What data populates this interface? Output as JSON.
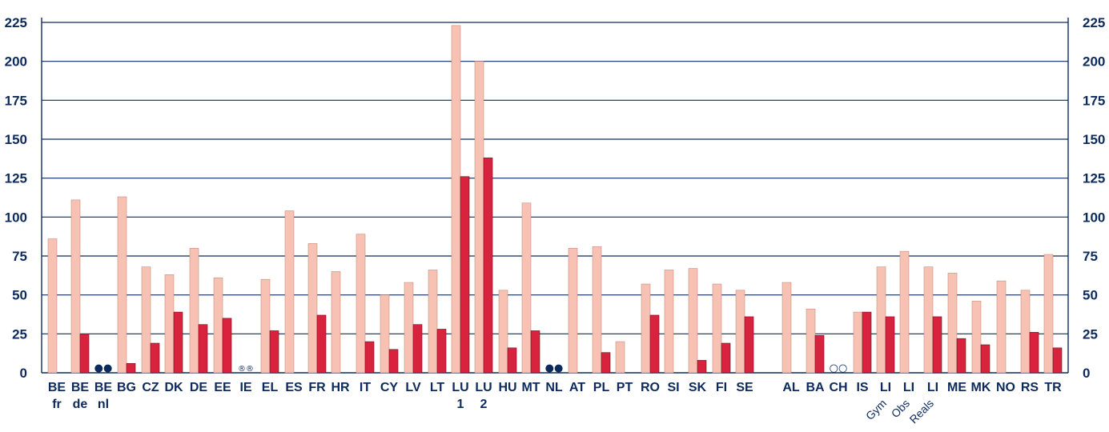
{
  "chart_data": {
    "type": "bar",
    "ylim": [
      0,
      225
    ],
    "yticks": [
      "0",
      "25",
      "50",
      "75",
      "100",
      "125",
      "150",
      "175",
      "200",
      "225"
    ],
    "grid": true,
    "colors": {
      "light": "#f7c2b4",
      "dark": "#d9233e",
      "text": "#0d2a5c",
      "grid": "#0d2a5c"
    },
    "categories": [
      {
        "label": "BE",
        "sub": "fr",
        "a": 86,
        "b": null
      },
      {
        "label": "BE",
        "sub": "de",
        "a": 111,
        "b": 25
      },
      {
        "label": "BE",
        "sub": "nl",
        "a": null,
        "b": null,
        "marker": "●●"
      },
      {
        "label": "BG",
        "sub": "",
        "a": 113,
        "b": 6
      },
      {
        "label": "CZ",
        "sub": "",
        "a": 68,
        "b": 19
      },
      {
        "label": "DK",
        "sub": "",
        "a": 63,
        "b": 39
      },
      {
        "label": "DE",
        "sub": "",
        "a": 80,
        "b": 31
      },
      {
        "label": "EE",
        "sub": "",
        "a": 61,
        "b": 35
      },
      {
        "label": "IE",
        "sub": "",
        "a": null,
        "b": null,
        "marker": "®®"
      },
      {
        "label": "EL",
        "sub": "",
        "a": 60,
        "b": 27
      },
      {
        "label": "ES",
        "sub": "",
        "a": 104,
        "b": null
      },
      {
        "label": "FR",
        "sub": "",
        "a": 83,
        "b": 37
      },
      {
        "label": "HR",
        "sub": "",
        "a": 65,
        "b": null
      },
      {
        "label": "IT",
        "sub": "",
        "a": 89,
        "b": 20
      },
      {
        "label": "CY",
        "sub": "",
        "a": 50,
        "b": 15
      },
      {
        "label": "LV",
        "sub": "",
        "a": 58,
        "b": 31
      },
      {
        "label": "LT",
        "sub": "",
        "a": 66,
        "b": 28
      },
      {
        "label": "LU",
        "sub": "1",
        "a": 223,
        "b": 126
      },
      {
        "label": "LU",
        "sub": "2",
        "a": 200,
        "b": 138
      },
      {
        "label": "HU",
        "sub": "",
        "a": 53,
        "b": 16
      },
      {
        "label": "MT",
        "sub": "",
        "a": 109,
        "b": 27
      },
      {
        "label": "NL",
        "sub": "",
        "a": null,
        "b": null,
        "marker": "●●"
      },
      {
        "label": "AT",
        "sub": "",
        "a": 80,
        "b": null
      },
      {
        "label": "PL",
        "sub": "",
        "a": 81,
        "b": 13
      },
      {
        "label": "PT",
        "sub": "",
        "a": 20,
        "b": null
      },
      {
        "label": "RO",
        "sub": "",
        "a": 57,
        "b": 37
      },
      {
        "label": "SI",
        "sub": "",
        "a": 66,
        "b": null
      },
      {
        "label": "SK",
        "sub": "",
        "a": 67,
        "b": 8
      },
      {
        "label": "FI",
        "sub": "",
        "a": 57,
        "b": 19
      },
      {
        "label": "SE",
        "sub": "",
        "a": 53,
        "b": 36
      },
      {
        "label": "AL",
        "sub": "",
        "a": 58,
        "b": null
      },
      {
        "label": "BA",
        "sub": "",
        "a": 41,
        "b": 24
      },
      {
        "label": "CH",
        "sub": "",
        "a": null,
        "b": null,
        "marker": "○○"
      },
      {
        "label": "IS",
        "sub": "",
        "a": 39,
        "b": 39
      },
      {
        "label": "LI",
        "sub": "Gym",
        "a": 68,
        "b": 36
      },
      {
        "label": "LI",
        "sub": "Obs",
        "a": 78,
        "b": null
      },
      {
        "label": "LI",
        "sub": "Reals",
        "a": 68,
        "b": 36
      },
      {
        "label": "ME",
        "sub": "",
        "a": 64,
        "b": 22
      },
      {
        "label": "MK",
        "sub": "",
        "a": 46,
        "b": 18
      },
      {
        "label": "NO",
        "sub": "",
        "a": 59,
        "b": null
      },
      {
        "label": "RS",
        "sub": "",
        "a": 53,
        "b": 26
      },
      {
        "label": "TR",
        "sub": "",
        "a": 76,
        "b": 16
      }
    ]
  }
}
